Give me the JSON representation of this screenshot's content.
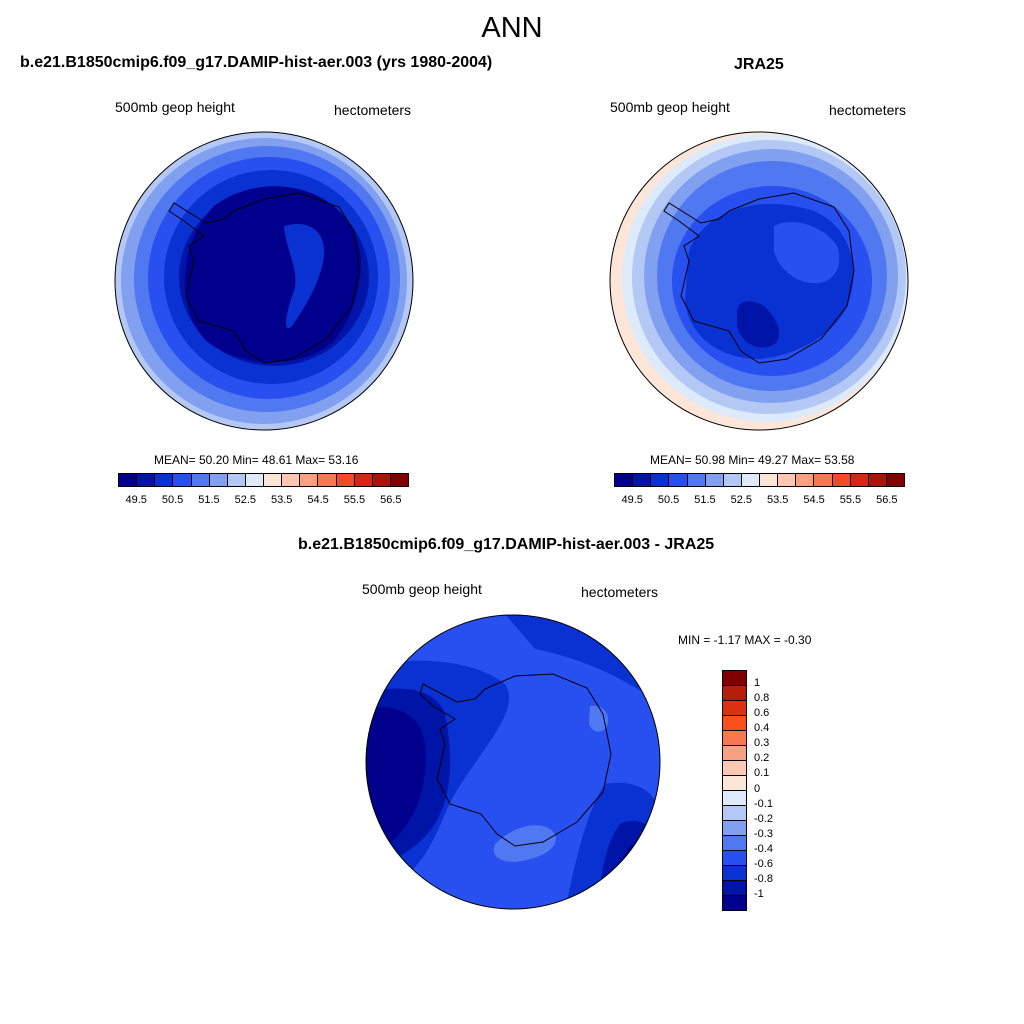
{
  "figure": {
    "title": "ANN",
    "panels": [
      {
        "title": "b.e21.B1850cmip6.f09_g17.DAMIP-hist-aer.003 (yrs 1980-2004)",
        "variable": "500mb geop height",
        "units": "hectometers",
        "stats": "MEAN=  50.20  Min=  48.61  Max=  53.16"
      },
      {
        "title": "JRA25",
        "variable": "500mb geop height",
        "units": "hectometers",
        "stats": "MEAN=  50.98  Min=  49.27  Max=  53.58"
      },
      {
        "title": "b.e21.B1850cmip6.f09_g17.DAMIP-hist-aer.003 - JRA25",
        "variable": "500mb geop height",
        "units": "hectometers",
        "stats": "MIN =  -1.17 MAX =  -0.30"
      }
    ],
    "field_colorbar": {
      "tick_labels": [
        "49.5",
        "50.5",
        "51.5",
        "52.5",
        "53.5",
        "54.5",
        "55.5",
        "56.5"
      ],
      "colors": [
        "#00008c",
        "#0014a8",
        "#0a32d2",
        "#2850f0",
        "#5078f0",
        "#82a0f0",
        "#b4c8f5",
        "#dceafa",
        "#fde6d8",
        "#fcc8b4",
        "#f9a082",
        "#f77850",
        "#f04a28",
        "#d22814",
        "#aa1408",
        "#800000"
      ]
    },
    "diff_colorbar": {
      "tick_labels": [
        "1",
        "0.8",
        "0.6",
        "0.4",
        "0.3",
        "0.2",
        "0.1",
        "0",
        "-0.1",
        "-0.2",
        "-0.3",
        "-0.4",
        "-0.6",
        "-0.8",
        "-1"
      ],
      "colors": [
        "#800000",
        "#b41e0a",
        "#dc3214",
        "#fa501e",
        "#f77850",
        "#f9a082",
        "#fcc8b4",
        "#fde6d8",
        "#dceafa",
        "#b4c8f5",
        "#82a0f0",
        "#5078f0",
        "#2850f0",
        "#0a32d2",
        "#0014a8",
        "#00008c"
      ]
    }
  }
}
